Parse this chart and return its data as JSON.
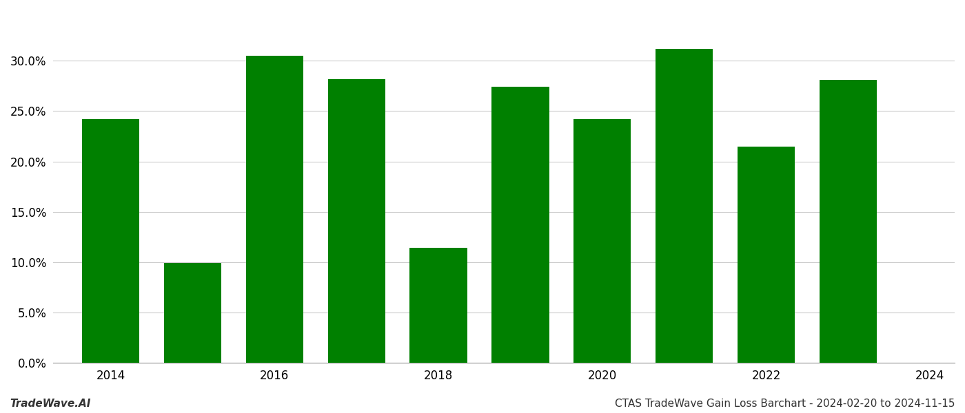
{
  "years": [
    2014,
    2015,
    2016,
    2017,
    2018,
    2019,
    2020,
    2021,
    2022,
    2023
  ],
  "values": [
    0.242,
    0.099,
    0.305,
    0.282,
    0.114,
    0.274,
    0.242,
    0.312,
    0.215,
    0.281
  ],
  "bar_color": "#008000",
  "title": "CTAS TradeWave Gain Loss Barchart - 2024-02-20 to 2024-11-15",
  "watermark": "TradeWave.AI",
  "ylim": [
    0,
    0.35
  ],
  "yticks": [
    0.0,
    0.05,
    0.1,
    0.15,
    0.2,
    0.25,
    0.3
  ],
  "xtick_years": [
    2014,
    2016,
    2018,
    2020,
    2022,
    2024
  ],
  "background_color": "#ffffff",
  "grid_color": "#cccccc",
  "title_fontsize": 11,
  "watermark_fontsize": 11,
  "tick_fontsize": 12,
  "bar_width": 0.7
}
